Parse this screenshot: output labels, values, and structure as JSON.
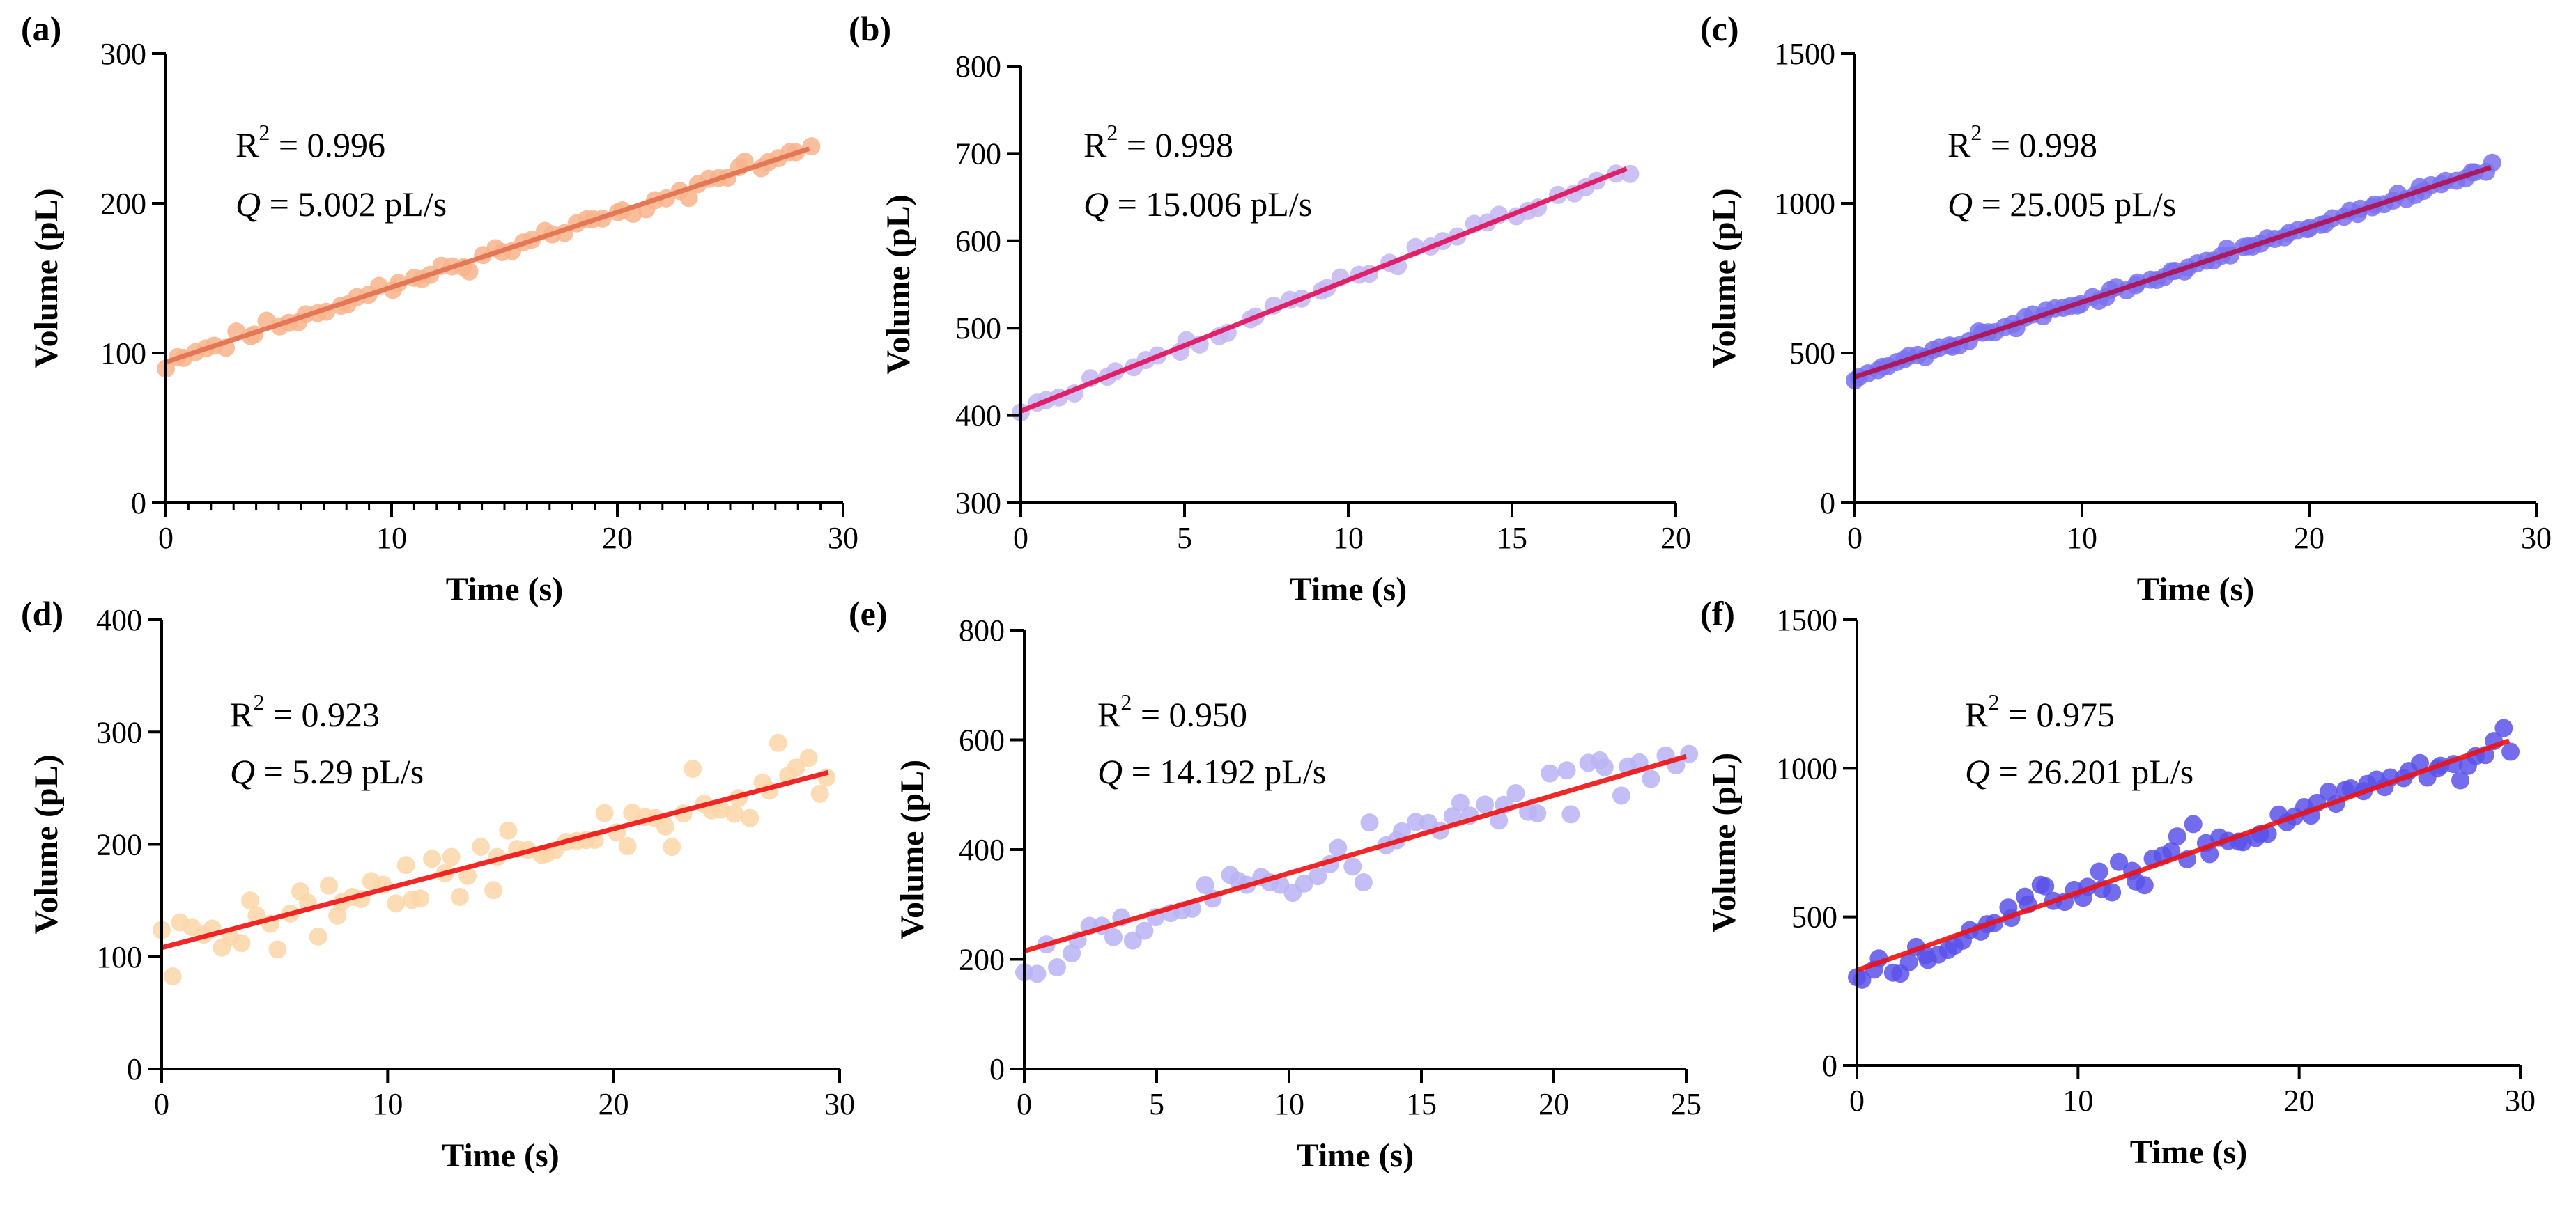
{
  "chart_data": [
    {
      "id": "a",
      "type": "scatter",
      "panel_label": "(a)",
      "xlabel": "Time (s)",
      "ylabel": "Volume (pL)",
      "xlim": [
        0,
        30
      ],
      "ylim": [
        0,
        300
      ],
      "xticks": [
        0,
        10,
        20,
        30
      ],
      "yticks": [
        0,
        100,
        200,
        300
      ],
      "x_minor_step": 1,
      "annotations": {
        "r2_symbol": "R",
        "r2_sup": "2",
        "r2_text": " = 0.996",
        "q_symbol": "Q",
        "q_text": " = 5.002 pL/s"
      },
      "point_color": "#f8b48c",
      "line_color": "#e07050",
      "fit": {
        "intercept": 94,
        "slope": 5.002,
        "x_range": [
          0,
          28.5
        ]
      },
      "points": {
        "seed": 11,
        "n": 64,
        "x_range": [
          0,
          28.5
        ],
        "noise": 2.5
      }
    },
    {
      "id": "b",
      "type": "scatter",
      "panel_label": "(b)",
      "xlabel": "Time (s)",
      "ylabel": "Volume (pL)",
      "xlim": [
        0,
        20
      ],
      "ylim": [
        300,
        800
      ],
      "xticks": [
        0,
        5,
        10,
        15,
        20
      ],
      "yticks": [
        300,
        400,
        500,
        600,
        700,
        800
      ],
      "annotations": {
        "r2_symbol": "R",
        "r2_sup": "2",
        "r2_text": " = 0.998",
        "q_symbol": "Q",
        "q_text": " = 15.006 pL/s"
      },
      "point_color": "#c4b6f2",
      "line_color": "#e0105a",
      "fit": {
        "intercept": 405,
        "slope": 15.006,
        "x_range": [
          0,
          18.5
        ]
      },
      "points": {
        "seed": 23,
        "n": 44,
        "x_range": [
          0,
          18.5
        ],
        "noise": 4
      }
    },
    {
      "id": "c",
      "type": "scatter",
      "panel_label": "(c)",
      "xlabel": "Time (s)",
      "ylabel": "Volume (pL)",
      "xlim": [
        0,
        30
      ],
      "ylim": [
        0,
        1500
      ],
      "xticks": [
        0,
        10,
        20,
        30
      ],
      "yticks": [
        0,
        500,
        1000,
        1500
      ],
      "annotations": {
        "r2_symbol": "R",
        "r2_sup": "2",
        "r2_text": " = 0.998",
        "q_symbol": "Q",
        "q_text": " = 25.005 pL/s"
      },
      "point_color": "#7a72ee",
      "line_color": "#b01050",
      "fit": {
        "intercept": 420,
        "slope": 25.005,
        "x_range": [
          0,
          28
        ]
      },
      "points": {
        "seed": 37,
        "n": 90,
        "x_range": [
          0,
          28
        ],
        "noise": 7
      }
    },
    {
      "id": "d",
      "type": "scatter",
      "panel_label": "(d)",
      "xlabel": "Time (s)",
      "ylabel": "Volume (pL)",
      "xlim": [
        0,
        30
      ],
      "ylim": [
        0,
        400
      ],
      "xticks": [
        0,
        10,
        20,
        30
      ],
      "yticks": [
        0,
        100,
        200,
        300,
        400
      ],
      "annotations": {
        "r2_symbol": "R",
        "r2_sup": "2",
        "r2_text": " = 0.923",
        "q_symbol": "Q",
        "q_text": " = 5.29 pL/s"
      },
      "point_color": "#fcd6a8",
      "line_color": "#ee1111",
      "fit": {
        "intercept": 108,
        "slope": 5.29,
        "x_range": [
          0,
          29.5
        ]
      },
      "points": {
        "seed": 41,
        "n": 70,
        "x_range": [
          0,
          29.5
        ],
        "noise": 14
      }
    },
    {
      "id": "e",
      "type": "scatter",
      "panel_label": "(e)",
      "xlabel": "Time (s)",
      "ylabel": "Volume (pL)",
      "xlim": [
        0,
        25
      ],
      "ylim": [
        0,
        800
      ],
      "xticks": [
        0,
        5,
        10,
        15,
        20,
        25
      ],
      "yticks": [
        0,
        200,
        400,
        600,
        800
      ],
      "annotations": {
        "r2_symbol": "R",
        "r2_sup": "2",
        "r2_text": " = 0.950",
        "q_symbol": "Q",
        "q_text": " = 14.192 pL/s"
      },
      "point_color": "#b8b4f4",
      "line_color": "#ee1111",
      "fit": {
        "intercept": 215,
        "slope": 14.192,
        "x_range": [
          0,
          25
        ]
      },
      "points": {
        "seed": 53,
        "n": 60,
        "x_range": [
          0,
          25
        ],
        "noise": 28
      }
    },
    {
      "id": "f",
      "type": "scatter",
      "panel_label": "(f)",
      "xlabel": "Time (s)",
      "ylabel": "Volume (pL)",
      "xlim": [
        0,
        30
      ],
      "ylim": [
        0,
        1500
      ],
      "xticks": [
        0,
        10,
        20,
        30
      ],
      "yticks": [
        0,
        500,
        1000,
        1500
      ],
      "annotations": {
        "r2_symbol": "R",
        "r2_sup": "2",
        "r2_text": " = 0.975",
        "q_symbol": "Q",
        "q_text": " = 26.201 pL/s"
      },
      "point_color": "#5a52ea",
      "line_color": "#ee1111",
      "fit": {
        "intercept": 320,
        "slope": 26.201,
        "x_range": [
          0,
          29.5
        ]
      },
      "points": {
        "seed": 67,
        "n": 80,
        "x_range": [
          0,
          29.5
        ],
        "noise": 35
      }
    }
  ]
}
